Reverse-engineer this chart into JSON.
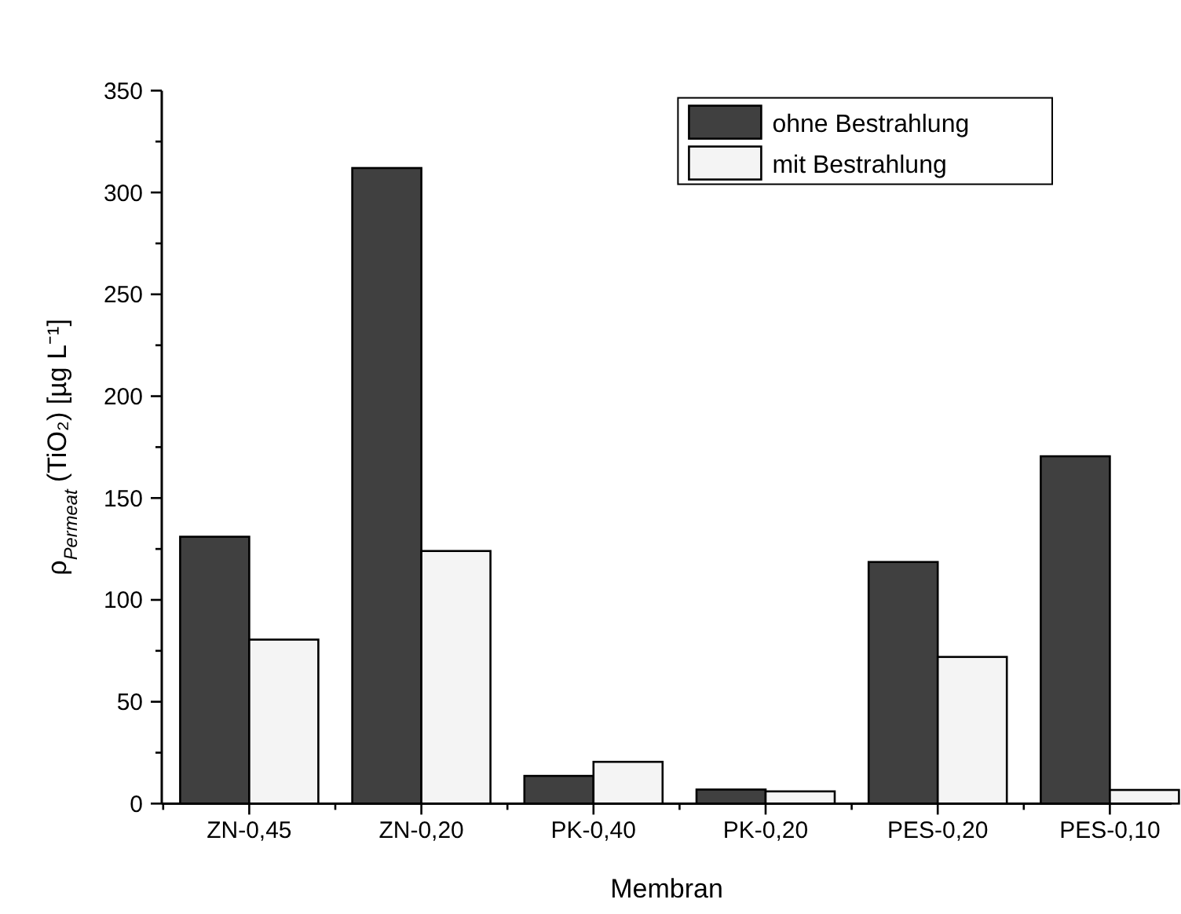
{
  "chart_data": {
    "type": "bar",
    "xlabel": "Membran",
    "ylabel": "ρ$_{Permeat}$ (TiO₂) [µg L⁻¹]",
    "categories": [
      "ZN-0,45",
      "ZN-0,20",
      "PK-0,40",
      "PK-0,20",
      "PES-0,20",
      "PES-0,10"
    ],
    "series": [
      {
        "name": "ohne Bestrahlung",
        "color": "#404040",
        "values": [
          131,
          312,
          13.6,
          6.9,
          118.6,
          170.5
        ]
      },
      {
        "name": "mit Bestrahlung",
        "color": "#f4f4f4",
        "values": [
          80.5,
          124,
          20.5,
          6,
          72,
          6.7
        ]
      }
    ],
    "ylim": [
      0,
      350
    ],
    "yticks": [
      0,
      {
        "value": 25,
        "label": null
      },
      50,
      {
        "value": 75,
        "label": null
      },
      100,
      {
        "value": 125,
        "label": null
      },
      150,
      {
        "value": 175,
        "label": null
      },
      200,
      {
        "value": 225,
        "label": null
      },
      250,
      {
        "value": 275,
        "label": null
      },
      300,
      {
        "value": 325,
        "label": null
      },
      350
    ],
    "legend": "top right",
    "grid": false
  }
}
